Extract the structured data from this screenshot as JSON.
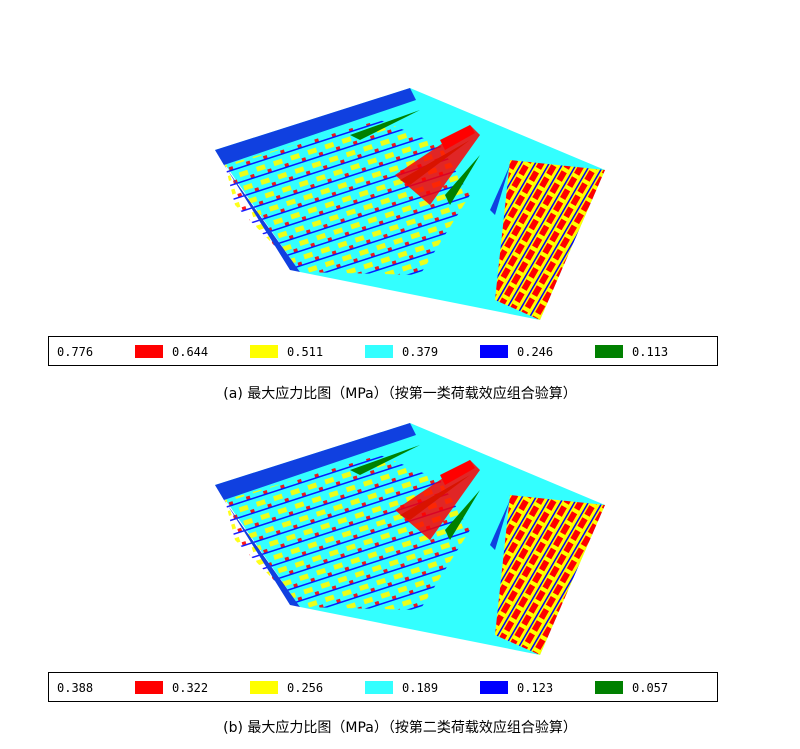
{
  "figures": [
    {
      "legend": {
        "max": 0.776,
        "items": [
          {
            "color": "#ff0000",
            "value": 0.644
          },
          {
            "color": "#ffff00",
            "value": 0.511
          },
          {
            "color": "#33ffff",
            "value": 0.379
          },
          {
            "color": "#0000ff",
            "value": 0.246
          },
          {
            "color": "#008000",
            "value": 0.113
          }
        ]
      },
      "caption": "(a)  最大应力比图（MPa）（按第一类荷载效应组合验算）"
    },
    {
      "legend": {
        "max": 0.388,
        "items": [
          {
            "color": "#ff0000",
            "value": 0.322
          },
          {
            "color": "#ffff00",
            "value": 0.256
          },
          {
            "color": "#33ffff",
            "value": 0.189
          },
          {
            "color": "#0000ff",
            "value": 0.123
          },
          {
            "color": "#008000",
            "value": 0.057
          }
        ]
      },
      "caption": "(b)  最大应力比图（MPa）（按第二类荷载效应组合验算）"
    }
  ]
}
